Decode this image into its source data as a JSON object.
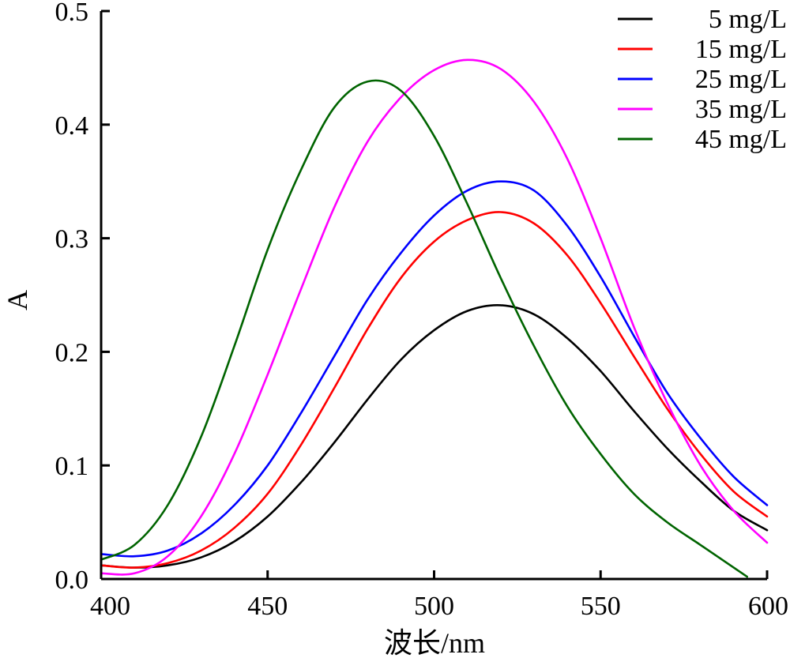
{
  "chart_data": {
    "type": "line",
    "title": "",
    "xlabel": "波长/nm",
    "ylabel": "A",
    "xlim": [
      400,
      600
    ],
    "ylim": [
      0,
      0.5
    ],
    "x_ticks": [
      400,
      450,
      500,
      550,
      600
    ],
    "x_tick_labels": [
      "400",
      "450",
      "500",
      "550",
      "600"
    ],
    "y_ticks": [
      0,
      0.1,
      0.2,
      0.3,
      0.4,
      0.5
    ],
    "y_tick_labels": [
      "0.0",
      "0.1",
      "0.2",
      "0.3",
      "0.4",
      "0.5"
    ],
    "grid": false,
    "legend_position": "top-right",
    "series": [
      {
        "name": "5 mg/L",
        "color": "#000000",
        "points": [
          [
            400,
            0.012
          ],
          [
            410,
            0.01
          ],
          [
            420,
            0.012
          ],
          [
            430,
            0.019
          ],
          [
            440,
            0.033
          ],
          [
            450,
            0.055
          ],
          [
            460,
            0.085
          ],
          [
            470,
            0.12
          ],
          [
            480,
            0.158
          ],
          [
            490,
            0.193
          ],
          [
            500,
            0.219
          ],
          [
            510,
            0.236
          ],
          [
            520,
            0.241
          ],
          [
            530,
            0.233
          ],
          [
            540,
            0.212
          ],
          [
            550,
            0.183
          ],
          [
            560,
            0.148
          ],
          [
            570,
            0.115
          ],
          [
            580,
            0.086
          ],
          [
            590,
            0.06
          ],
          [
            600,
            0.043
          ]
        ]
      },
      {
        "name": "15 mg/L",
        "color": "#ff0000",
        "points": [
          [
            400,
            0.012
          ],
          [
            410,
            0.01
          ],
          [
            420,
            0.014
          ],
          [
            430,
            0.025
          ],
          [
            440,
            0.045
          ],
          [
            450,
            0.075
          ],
          [
            460,
            0.118
          ],
          [
            470,
            0.168
          ],
          [
            480,
            0.22
          ],
          [
            490,
            0.265
          ],
          [
            500,
            0.297
          ],
          [
            510,
            0.316
          ],
          [
            520,
            0.323
          ],
          [
            530,
            0.313
          ],
          [
            540,
            0.285
          ],
          [
            550,
            0.243
          ],
          [
            560,
            0.196
          ],
          [
            570,
            0.15
          ],
          [
            580,
            0.11
          ],
          [
            590,
            0.077
          ],
          [
            600,
            0.055
          ]
        ]
      },
      {
        "name": "25 mg/L",
        "color": "#0000ff",
        "points": [
          [
            400,
            0.022
          ],
          [
            410,
            0.02
          ],
          [
            420,
            0.025
          ],
          [
            430,
            0.04
          ],
          [
            440,
            0.065
          ],
          [
            450,
            0.1
          ],
          [
            460,
            0.146
          ],
          [
            470,
            0.196
          ],
          [
            480,
            0.246
          ],
          [
            490,
            0.287
          ],
          [
            500,
            0.32
          ],
          [
            510,
            0.342
          ],
          [
            520,
            0.35
          ],
          [
            530,
            0.342
          ],
          [
            540,
            0.311
          ],
          [
            550,
            0.266
          ],
          [
            560,
            0.214
          ],
          [
            570,
            0.164
          ],
          [
            580,
            0.124
          ],
          [
            590,
            0.09
          ],
          [
            600,
            0.065
          ]
        ]
      },
      {
        "name": "35 mg/L",
        "color": "#ff00ff",
        "points": [
          [
            400,
            0.005
          ],
          [
            410,
            0.005
          ],
          [
            420,
            0.02
          ],
          [
            430,
            0.055
          ],
          [
            440,
            0.11
          ],
          [
            450,
            0.18
          ],
          [
            460,
            0.255
          ],
          [
            470,
            0.327
          ],
          [
            480,
            0.385
          ],
          [
            490,
            0.424
          ],
          [
            500,
            0.448
          ],
          [
            510,
            0.457
          ],
          [
            520,
            0.449
          ],
          [
            530,
            0.42
          ],
          [
            540,
            0.37
          ],
          [
            550,
            0.3
          ],
          [
            560,
            0.222
          ],
          [
            570,
            0.155
          ],
          [
            580,
            0.1
          ],
          [
            590,
            0.06
          ],
          [
            600,
            0.032
          ]
        ]
      },
      {
        "name": "45 mg/L",
        "color": "#006400",
        "points": [
          [
            400,
            0.017
          ],
          [
            410,
            0.03
          ],
          [
            420,
            0.065
          ],
          [
            430,
            0.125
          ],
          [
            440,
            0.205
          ],
          [
            450,
            0.29
          ],
          [
            460,
            0.36
          ],
          [
            470,
            0.415
          ],
          [
            480,
            0.438
          ],
          [
            490,
            0.43
          ],
          [
            500,
            0.39
          ],
          [
            510,
            0.33
          ],
          [
            520,
            0.265
          ],
          [
            530,
            0.205
          ],
          [
            540,
            0.152
          ],
          [
            550,
            0.11
          ],
          [
            560,
            0.075
          ],
          [
            570,
            0.05
          ],
          [
            580,
            0.03
          ],
          [
            590,
            0.01
          ],
          [
            594,
            0.002
          ]
        ]
      }
    ]
  }
}
